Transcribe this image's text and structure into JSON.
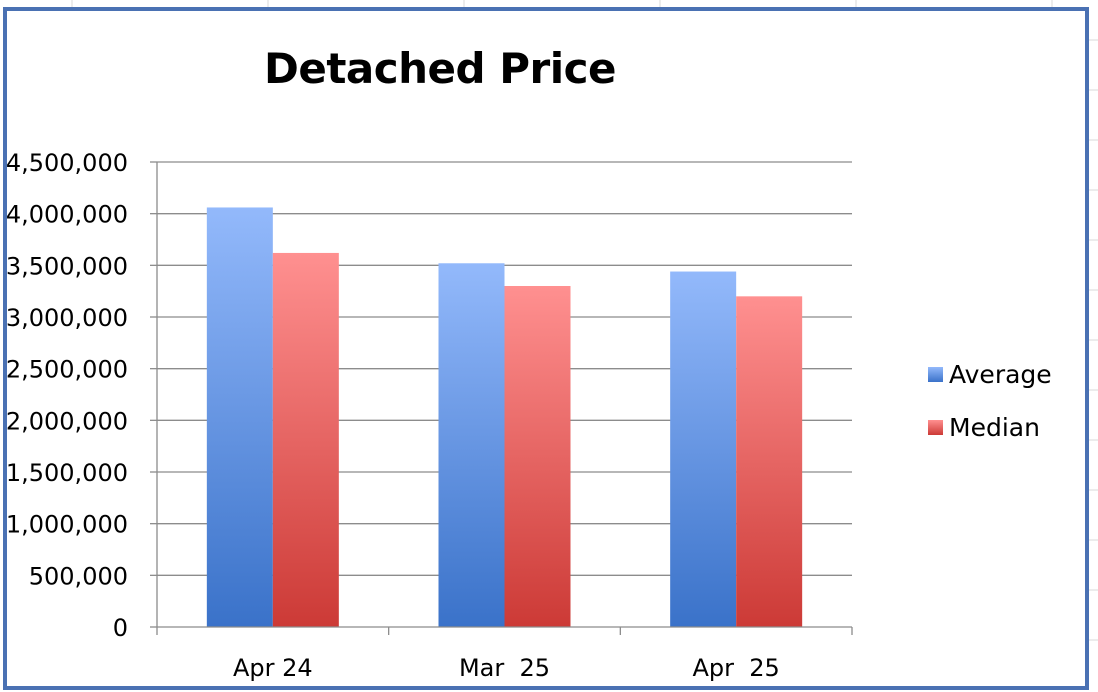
{
  "chart_data": {
    "type": "bar",
    "title": "Detached Price",
    "categories": [
      "Apr 24",
      "Mar  25",
      "Apr  25"
    ],
    "series": [
      {
        "name": "Average",
        "values": [
          4060000,
          3520000,
          3440000
        ],
        "color_top": "#93b9fb",
        "color_bottom": "#3a72c9"
      },
      {
        "name": "Median",
        "values": [
          3620000,
          3300000,
          3200000
        ],
        "color_top": "#ff9090",
        "color_bottom": "#cc3a36"
      }
    ],
    "ylim": [
      0,
      4500000
    ],
    "y_ticks": [
      0,
      500000,
      1000000,
      1500000,
      2000000,
      2500000,
      3000000,
      3500000,
      4000000,
      4500000
    ],
    "y_tick_labels": [
      "0",
      "500,000",
      "1,000,000",
      "1,500,000",
      "2,000,000",
      "2,500,000",
      "3,000,000",
      "3,500,000",
      "4,000,000",
      "4,500,000"
    ],
    "xlabel": "",
    "ylabel": "",
    "grid": true,
    "legend_position": "right"
  },
  "colors": {
    "frame_border": "#4a71b3",
    "gridline": "#8c8c8c",
    "sheet_gridline": "#d9d9d9"
  }
}
